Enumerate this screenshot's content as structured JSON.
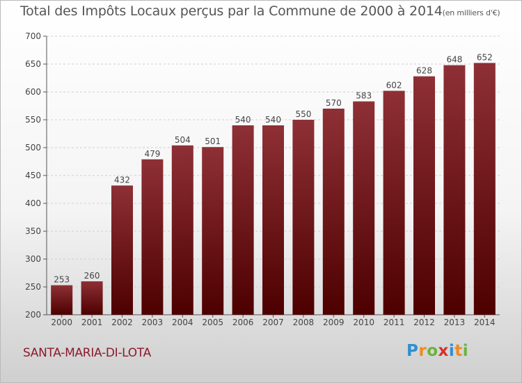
{
  "title": "Total des Impôts Locaux perçus par la Commune de 2000 à 2014",
  "title_unit": "(en milliers d'€)",
  "commune": "SANTA-MARIA-DI-LOTA",
  "logo": {
    "letters": [
      {
        "char": "P",
        "color": "#2e8fd1"
      },
      {
        "char": "r",
        "color": "#f08a1c"
      },
      {
        "char": "o",
        "color": "#6ab33f"
      },
      {
        "char": "x",
        "color": "#d62f2f"
      },
      {
        "char": "i",
        "color": "#2e8fd1"
      },
      {
        "char": "t",
        "color": "#f08a1c"
      },
      {
        "char": "i",
        "color": "#6ab33f"
      }
    ]
  },
  "colors": {
    "bar_top": "#8e3036",
    "bar_bottom": "#4d0000",
    "axis": "#555555",
    "grid": "#cfcfcf"
  },
  "chart_data": {
    "type": "bar",
    "title": "Total des Impôts Locaux perçus par la Commune de 2000 à 2014",
    "categories": [
      "2000",
      "2001",
      "2002",
      "2003",
      "2004",
      "2005",
      "2006",
      "2007",
      "2008",
      "2009",
      "2010",
      "2011",
      "2012",
      "2013",
      "2014"
    ],
    "values": [
      253,
      260,
      432,
      479,
      504,
      501,
      540,
      540,
      550,
      570,
      583,
      602,
      628,
      648,
      652
    ],
    "ylim": [
      200,
      700
    ],
    "yticks": [
      200,
      250,
      300,
      350,
      400,
      450,
      500,
      550,
      600,
      650,
      700
    ],
    "grid": true,
    "xlabel": "",
    "ylabel": ""
  }
}
